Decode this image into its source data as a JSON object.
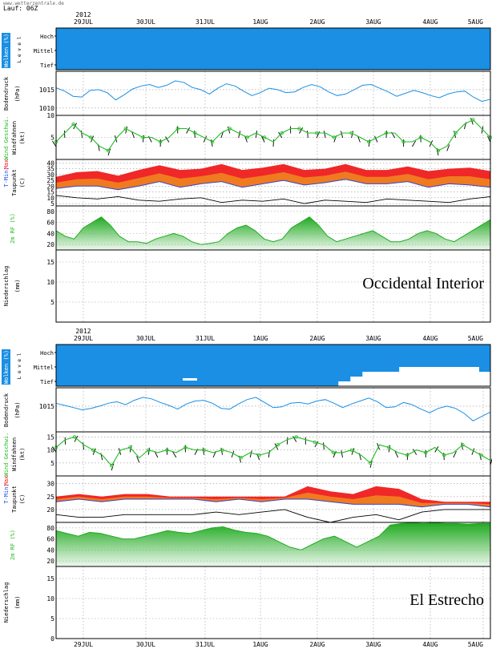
{
  "header": {
    "run": "Lauf: 06Z",
    "site": "www.wetterzentrale.de"
  },
  "chart_data": {
    "type": "line",
    "dates": [
      "29JUL",
      "30JUL",
      "31JUL",
      "1AUG",
      "2AUG",
      "3AUG",
      "4AUG",
      "5AUG"
    ],
    "year": "2012",
    "panel_labels": {
      "clouds_title": "Wolken (%)",
      "clouds_sub": "L e v e l",
      "cloud_levels": [
        "Hoch",
        "Mittel",
        "Tief"
      ],
      "pressure_title": "Bodendruck",
      "pressure_unit": "(hPa)",
      "wind_title": "Wind Geschwi.",
      "wind_sub": "Windfahnen",
      "wind_unit": "(kt)",
      "temp_title_a": "T-Min,",
      "temp_title_b": "Max",
      "temp_sub": "Taupunkt",
      "temp_unit": "(C)",
      "rh_title": "2m RF (%)",
      "precip_title": "Niederschlag",
      "precip_unit": "(mm)"
    },
    "locations": [
      {
        "name": "Occidental Interior",
        "clouds_low_pct": 0,
        "pressure": {
          "ticks": [
            "1015",
            "1010"
          ],
          "ylim": [
            1008,
            1020
          ],
          "values": [
            1015.5,
            1014.6,
            1013.2,
            1013.0,
            1014.8,
            1015.0,
            1014.2,
            1012.2,
            1013.6,
            1015.2,
            1016.0,
            1016.4,
            1015.6,
            1016.2,
            1017.4,
            1017.0,
            1015.6,
            1015.0,
            1013.8,
            1015.4,
            1016.6,
            1016.0,
            1014.6,
            1013.4,
            1014.2,
            1015.4,
            1015.0,
            1014.2,
            1014.4,
            1015.6,
            1016.4,
            1015.8,
            1014.4,
            1013.4,
            1013.8,
            1015.0,
            1016.2,
            1016.4,
            1015.4,
            1014.4,
            1013.2,
            1014.0,
            1014.8,
            1014.2,
            1013.4,
            1012.8,
            1013.8,
            1014.4,
            1014.6,
            1013.0,
            1011.8,
            1012.4
          ]
        },
        "wind": {
          "ticks": [
            "10",
            "5"
          ],
          "ylim": [
            0,
            10
          ],
          "values": [
            4,
            6,
            8,
            6,
            5,
            3,
            2,
            5,
            7,
            6,
            5,
            5,
            4,
            5,
            7,
            7,
            6,
            5,
            4,
            6,
            7,
            6,
            5,
            6,
            5,
            4,
            6,
            7,
            7,
            6,
            6,
            6,
            5,
            6,
            6,
            5,
            4,
            5,
            6,
            6,
            4,
            4,
            5,
            4,
            2,
            3,
            6,
            8,
            9,
            7,
            5
          ]
        },
        "temperature": {
          "ticks": [
            "40",
            "35",
            "30",
            "25",
            "20",
            "15",
            "10",
            "5"
          ],
          "ylim": [
            3,
            43
          ],
          "min": [
            18,
            20,
            20,
            17,
            20,
            24,
            19,
            22,
            24,
            19,
            22,
            25,
            21,
            23,
            26,
            22,
            22,
            24,
            19,
            22,
            21,
            19
          ],
          "max": [
            28,
            32,
            33,
            29,
            34,
            38,
            34,
            35,
            39,
            34,
            36,
            39,
            34,
            35,
            39,
            34,
            34,
            37,
            33,
            35,
            36,
            33
          ],
          "dew": [
            12,
            10,
            9,
            11,
            8,
            7,
            9,
            10,
            6,
            8,
            7,
            9,
            5,
            8,
            7,
            6,
            9,
            8,
            7,
            6,
            9,
            11
          ]
        },
        "rh": {
          "ticks": [
            "80",
            "60",
            "40",
            "20"
          ],
          "ylim": [
            10,
            90
          ],
          "values": [
            45,
            35,
            30,
            50,
            60,
            70,
            55,
            35,
            25,
            25,
            22,
            30,
            35,
            40,
            35,
            25,
            20,
            22,
            25,
            40,
            50,
            55,
            45,
            30,
            25,
            30,
            50,
            60,
            70,
            55,
            35,
            25,
            30,
            35,
            40,
            45,
            35,
            25,
            25,
            30,
            40,
            45,
            40,
            30,
            25,
            35,
            45,
            55,
            65
          ]
        },
        "precip": {
          "ticks": [
            "15",
            "10",
            "5"
          ],
          "ylim": [
            0,
            18
          ],
          "values": []
        }
      },
      {
        "name": "El Estrecho",
        "clouds_low_pct": 35,
        "pressure": {
          "ticks": [
            "1015"
          ],
          "ylim": [
            1008,
            1020
          ],
          "values": [
            1015.8,
            1015.2,
            1014.6,
            1014.0,
            1014.4,
            1015.0,
            1015.8,
            1016.2,
            1015.4,
            1016.6,
            1017.4,
            1017.0,
            1016.0,
            1015.2,
            1014.2,
            1015.6,
            1016.4,
            1016.6,
            1015.8,
            1014.4,
            1014.2,
            1015.6,
            1016.8,
            1017.4,
            1016.0,
            1014.6,
            1014.8,
            1015.8,
            1016.0,
            1015.6,
            1016.4,
            1016.8,
            1015.8,
            1014.6,
            1015.6,
            1016.4,
            1017.2,
            1016.2,
            1014.6,
            1014.8,
            1016.0,
            1015.4,
            1014.2,
            1013.2,
            1014.4,
            1015.0,
            1014.4,
            1013.0,
            1011.0,
            1012.2,
            1013.4
          ]
        },
        "wind": {
          "ticks": [
            "15",
            "10",
            "5"
          ],
          "ylim": [
            0,
            17
          ],
          "values": [
            11,
            14,
            15,
            12,
            10,
            8,
            4,
            10,
            11,
            7,
            10,
            9,
            10,
            9,
            11,
            10,
            10,
            9,
            10,
            9,
            7,
            9,
            8,
            9,
            12,
            14,
            15,
            14,
            13,
            12,
            9,
            9,
            10,
            8,
            5,
            12,
            11,
            9,
            8,
            10,
            9,
            11,
            8,
            9,
            12,
            10,
            8,
            6
          ]
        },
        "temperature": {
          "ticks": [
            "30",
            "25",
            "20"
          ],
          "ylim": [
            15,
            33
          ],
          "min": [
            23,
            24,
            23,
            24,
            24,
            24,
            24,
            23,
            24,
            23,
            24,
            24,
            23,
            22,
            22,
            22,
            21,
            22,
            22,
            21
          ],
          "max": [
            25,
            26,
            25,
            26,
            26,
            25,
            25,
            25,
            25,
            25,
            25,
            29,
            27,
            26,
            29,
            28,
            24,
            23,
            23,
            23
          ],
          "dew": [
            18,
            17,
            17,
            18,
            18,
            18,
            18,
            19,
            18,
            19,
            20,
            17,
            15,
            17,
            18,
            16,
            19,
            20,
            20,
            20
          ]
        },
        "rh": {
          "ticks": [
            "80",
            "60",
            "40",
            "20"
          ],
          "ylim": [
            10,
            90
          ],
          "values": [
            75,
            70,
            65,
            72,
            70,
            65,
            60,
            60,
            65,
            70,
            75,
            72,
            70,
            75,
            80,
            82,
            76,
            72,
            70,
            65,
            55,
            45,
            40,
            50,
            60,
            65,
            55,
            45,
            55,
            65,
            85,
            88,
            89,
            88,
            89,
            88,
            88,
            87,
            88,
            88
          ]
        },
        "precip": {
          "ticks": [
            "15",
            "10",
            "5",
            "0"
          ],
          "ylim": [
            0,
            18
          ],
          "values": []
        }
      }
    ]
  }
}
